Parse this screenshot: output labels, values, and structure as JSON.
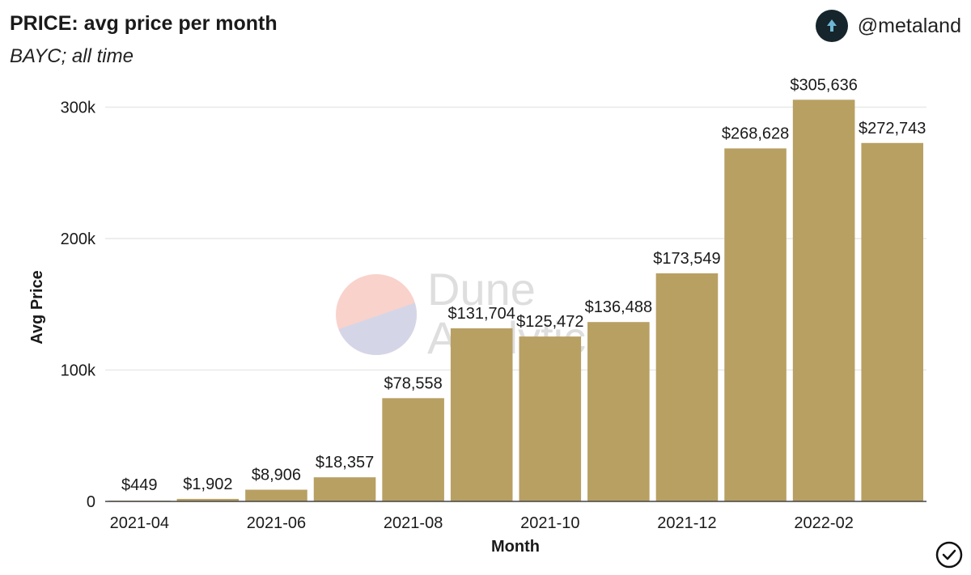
{
  "header": {
    "title": "PRICE: avg price per month",
    "subtitle": "BAYC; all time",
    "account_handle": "@metaland",
    "avatar_icon": "metaland-logo-icon"
  },
  "watermark": {
    "line1": "Dune",
    "line2": "Analytics"
  },
  "footer": {
    "status_icon": "checkmark-circle-icon"
  },
  "colors": {
    "bar": "#b8a063",
    "grid": "#e9e9e9",
    "text": "#1a1a1a"
  },
  "chart_data": {
    "type": "bar",
    "title": "PRICE: avg price per month",
    "subtitle": "BAYC; all time",
    "xlabel": "Month",
    "ylabel": "Avg Price",
    "categories": [
      "2021-04",
      "2021-05",
      "2021-06",
      "2021-07",
      "2021-08",
      "2021-09",
      "2021-10",
      "2021-11",
      "2021-12",
      "2022-01",
      "2022-02",
      "2022-03"
    ],
    "values": [
      449,
      1902,
      8906,
      18357,
      78558,
      131704,
      125472,
      136488,
      173549,
      268628,
      305636,
      272743
    ],
    "data_labels": [
      "$449",
      "$1,902",
      "$8,906",
      "$18,357",
      "$78,558",
      "$131,704",
      "$125,472",
      "$136,488",
      "$173,549",
      "$268,628",
      "$305,636",
      "$272,743"
    ],
    "x_tick_labels": [
      "2021-04",
      "2021-06",
      "2021-08",
      "2021-10",
      "2021-12",
      "2022-02"
    ],
    "y_ticks": [
      0,
      100000,
      200000,
      300000
    ],
    "y_tick_labels": [
      "0",
      "100k",
      "200k",
      "300k"
    ],
    "ylim": [
      0,
      320000
    ],
    "grid": true,
    "legend": "none"
  }
}
